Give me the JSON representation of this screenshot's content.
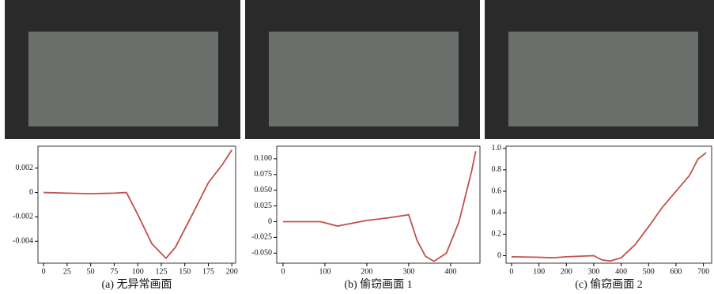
{
  "chart_data": [
    {
      "type": "line",
      "caption": "(a) 无异常画面",
      "x": [
        0,
        25,
        50,
        75,
        88,
        100,
        115,
        130,
        140,
        160,
        175,
        190,
        200
      ],
      "series": [
        {
          "color": "#c0504d",
          "values": [
            0,
            -5e-05,
            -0.0001,
            -5e-05,
            0,
            -0.0018,
            -0.0042,
            -0.0054,
            -0.0045,
            -0.0015,
            0.0008,
            0.0023,
            0.0035
          ]
        }
      ],
      "xlim": [
        -6,
        204
      ],
      "xticks": [
        0,
        25,
        50,
        75,
        100,
        125,
        150,
        175,
        200
      ],
      "ylim": [
        -0.0058,
        0.0038
      ],
      "yticks": [
        {
          "value": -0.004,
          "label": "-0.004"
        },
        {
          "value": -0.002,
          "label": "-0.002"
        },
        0,
        {
          "value": 0.002,
          "label": "0.002"
        }
      ]
    },
    {
      "type": "line",
      "caption": "(b) 偷窃画面 1",
      "x": [
        0,
        90,
        130,
        200,
        250,
        300,
        320,
        340,
        360,
        390,
        420,
        450,
        460
      ],
      "series": [
        {
          "color": "#c0504d",
          "values": [
            0,
            0,
            -0.007,
            0.002,
            0.006,
            0.011,
            -0.03,
            -0.055,
            -0.063,
            -0.05,
            0,
            0.08,
            0.112
          ]
        }
      ],
      "xlim": [
        -15,
        470
      ],
      "xticks": [
        0,
        100,
        200,
        300,
        400
      ],
      "ylim": [
        -0.066,
        0.12
      ],
      "yticks": [
        {
          "value": -0.05,
          "label": "-0.050"
        },
        {
          "value": -0.025,
          "label": "-0.025"
        },
        0,
        {
          "value": 0.025,
          "label": "0.025"
        },
        {
          "value": 0.05,
          "label": "0.050"
        },
        {
          "value": 0.075,
          "label": "0.075"
        },
        {
          "value": 0.1,
          "label": "0.100"
        }
      ]
    },
    {
      "type": "line",
      "caption": "(c) 偷窃画面 2",
      "x": [
        0,
        100,
        150,
        200,
        300,
        330,
        360,
        400,
        450,
        500,
        550,
        600,
        650,
        680,
        710
      ],
      "series": [
        {
          "color": "#c0504d",
          "values": [
            -0.01,
            -0.015,
            -0.02,
            -0.01,
            0,
            -0.04,
            -0.05,
            -0.02,
            0.1,
            0.27,
            0.45,
            0.6,
            0.75,
            0.9,
            0.96
          ]
        }
      ],
      "xlim": [
        -20,
        730
      ],
      "xticks": [
        0,
        100,
        200,
        300,
        400,
        500,
        600,
        700
      ],
      "ylim": [
        -0.07,
        1.02
      ],
      "yticks": [
        0,
        0.2,
        0.4,
        0.6,
        0.8,
        {
          "value": 1.0,
          "label": "1.0"
        }
      ]
    }
  ]
}
